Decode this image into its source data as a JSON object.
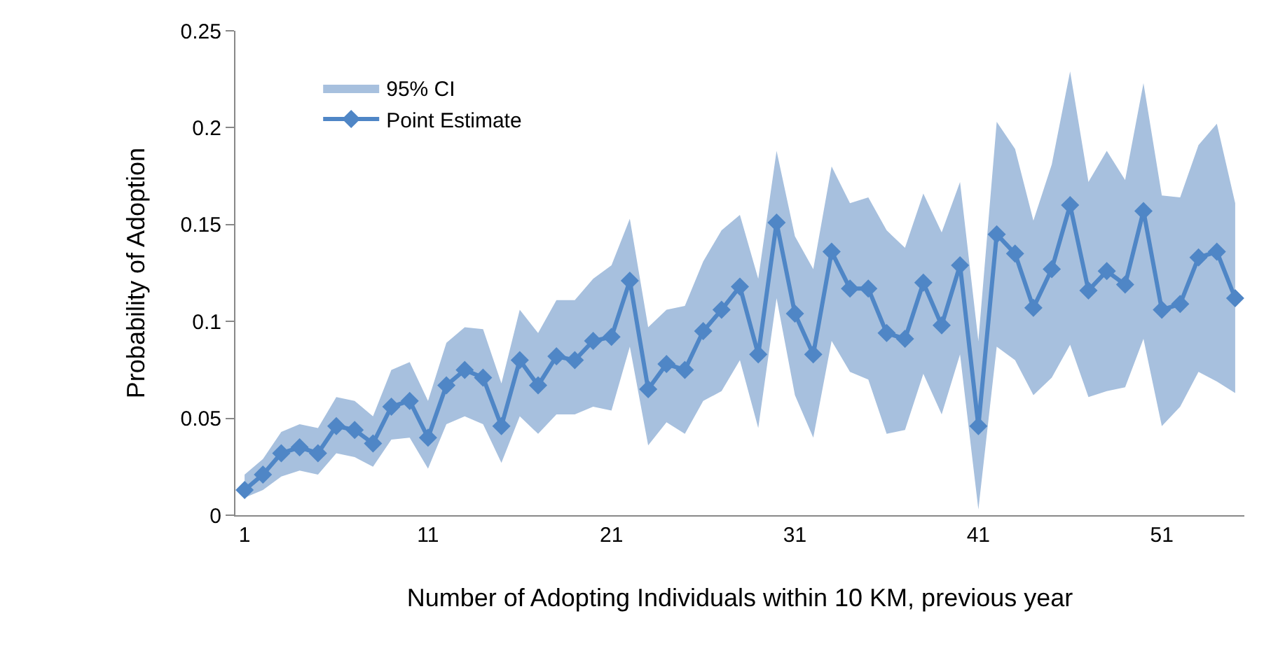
{
  "chart_data": {
    "type": "line",
    "xlabel": "Number of Adopting Individuals within 10 KM, previous year",
    "ylabel": "Probability of Adoption",
    "categories": [
      "1",
      null,
      null,
      null,
      null,
      null,
      null,
      null,
      null,
      null,
      "11",
      null,
      null,
      null,
      null,
      null,
      null,
      null,
      null,
      null,
      "21",
      null,
      null,
      null,
      null,
      null,
      null,
      null,
      null,
      null,
      "31",
      null,
      null,
      null,
      null,
      null,
      null,
      null,
      null,
      null,
      "41",
      null,
      null,
      null,
      null,
      null,
      null,
      null,
      null,
      null,
      "51",
      null,
      null,
      null,
      null
    ],
    "series": [
      {
        "type": "area",
        "name": "95% CI",
        "color": "#a7c0de",
        "values": [
          null,
          null,
          null,
          null,
          null,
          null,
          null,
          null,
          null,
          null,
          null,
          null,
          null,
          null,
          null,
          null,
          null,
          null,
          null,
          null,
          null,
          null,
          null,
          null,
          null,
          null,
          null,
          null,
          null,
          null,
          null,
          null,
          null,
          null,
          null,
          null,
          null,
          null,
          null,
          null,
          null,
          null,
          null,
          null,
          null,
          null,
          null,
          null,
          null,
          null,
          null,
          null,
          null,
          null,
          null
        ],
        "upper": [
          0.021,
          0.029,
          0.043,
          0.047,
          0.045,
          0.061,
          0.059,
          0.051,
          0.075,
          0.079,
          0.059,
          0.089,
          0.097,
          0.096,
          0.068,
          0.106,
          0.094,
          0.111,
          0.111,
          0.122,
          0.129,
          0.153,
          0.097,
          0.106,
          0.108,
          0.131,
          0.147,
          0.155,
          0.122,
          0.188,
          0.144,
          0.127,
          0.18,
          0.161,
          0.164,
          0.147,
          0.138,
          0.166,
          0.146,
          0.172,
          0.09,
          0.203,
          0.189,
          0.152,
          0.181,
          0.229,
          0.172,
          0.188,
          0.173,
          0.223,
          0.165,
          0.164,
          0.191,
          0.202,
          0.161
        ],
        "lower": [
          0.009,
          0.013,
          0.02,
          0.023,
          0.021,
          0.032,
          0.03,
          0.025,
          0.039,
          0.04,
          0.024,
          0.047,
          0.051,
          0.047,
          0.027,
          0.051,
          0.042,
          0.052,
          0.052,
          0.056,
          0.054,
          0.087,
          0.036,
          0.048,
          0.042,
          0.059,
          0.064,
          0.08,
          0.045,
          0.112,
          0.062,
          0.04,
          0.09,
          0.074,
          0.07,
          0.042,
          0.044,
          0.073,
          0.052,
          0.083,
          0.003,
          0.087,
          0.08,
          0.062,
          0.071,
          0.088,
          0.061,
          0.064,
          0.066,
          0.091,
          0.046,
          0.056,
          0.074,
          0.069,
          0.063
        ]
      },
      {
        "name": "Point Estimate",
        "color": "#4f86c6",
        "values": [
          0.013,
          0.021,
          0.032,
          0.035,
          0.032,
          0.046,
          0.044,
          0.037,
          0.056,
          0.059,
          0.04,
          0.067,
          0.075,
          0.071,
          0.046,
          0.08,
          0.067,
          0.082,
          0.08,
          0.09,
          0.092,
          0.121,
          0.065,
          0.078,
          0.075,
          0.095,
          0.106,
          0.118,
          0.083,
          0.151,
          0.104,
          0.083,
          0.136,
          0.117,
          0.117,
          0.094,
          0.091,
          0.12,
          0.098,
          0.129,
          0.046,
          0.145,
          0.135,
          0.107,
          0.127,
          0.16,
          0.116,
          0.126,
          0.119,
          0.157,
          0.106,
          0.109,
          0.133,
          0.136,
          0.112
        ]
      }
    ],
    "ylim": [
      0,
      0.25
    ],
    "yticks": [
      0,
      0.05,
      0.1,
      0.15,
      0.2,
      0.25
    ],
    "grid": false,
    "legend": "top left",
    "marker": "diamond",
    "line_style": "solid"
  }
}
